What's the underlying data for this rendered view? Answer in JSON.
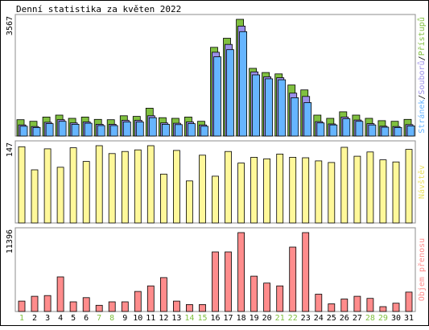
{
  "chart_data": [
    {
      "type": "bar",
      "title": "Denní statistika za květen 2022",
      "ymax_label": "3567",
      "ylim": [
        0,
        3567
      ],
      "legend": [
        "Stránek",
        "/",
        "Souborů",
        "/",
        "Přístupů"
      ],
      "categories": [
        "1",
        "2",
        "3",
        "4",
        "5",
        "6",
        "7",
        "8",
        "9",
        "10",
        "11",
        "12",
        "13",
        "14",
        "15",
        "16",
        "17",
        "18",
        "19",
        "20",
        "21",
        "22",
        "23",
        "24",
        "25",
        "26",
        "27",
        "28",
        "29",
        "30",
        "31"
      ],
      "weekend_days": [
        1,
        7,
        8,
        14,
        15,
        21,
        22,
        28,
        29
      ],
      "series": [
        {
          "name": "Přístupů",
          "values": [
            500,
            450,
            580,
            640,
            540,
            580,
            510,
            500,
            620,
            600,
            850,
            560,
            540,
            580,
            450,
            2710,
            2990,
            3567,
            2070,
            1940,
            1900,
            1560,
            1410,
            640,
            540,
            740,
            640,
            540,
            470,
            450,
            510
          ]
        },
        {
          "name": "Souborů",
          "values": [
            340,
            290,
            420,
            500,
            400,
            430,
            360,
            360,
            480,
            480,
            620,
            400,
            390,
            430,
            340,
            2560,
            2800,
            3360,
            1960,
            1810,
            1780,
            1310,
            1210,
            440,
            370,
            580,
            490,
            380,
            300,
            290,
            350
          ]
        },
        {
          "name": "Stránek",
          "values": [
            300,
            260,
            380,
            450,
            360,
            390,
            320,
            320,
            430,
            430,
            560,
            360,
            350,
            380,
            300,
            2420,
            2640,
            3190,
            1870,
            1750,
            1720,
            1170,
            1020,
            400,
            340,
            530,
            450,
            340,
            270,
            260,
            310
          ]
        }
      ]
    },
    {
      "type": "bar",
      "ymax_label": "147",
      "ylim": [
        0,
        147
      ],
      "legend": "Návštěv",
      "categories": [
        "1",
        "2",
        "3",
        "4",
        "5",
        "6",
        "7",
        "8",
        "9",
        "10",
        "11",
        "12",
        "13",
        "14",
        "15",
        "16",
        "17",
        "18",
        "19",
        "20",
        "21",
        "22",
        "23",
        "24",
        "25",
        "26",
        "27",
        "28",
        "29",
        "30",
        "31"
      ],
      "series": [
        {
          "name": "Návštěv",
          "values": [
            145,
            101,
            141,
            106,
            143,
            117,
            147,
            132,
            136,
            139,
            147,
            93,
            138,
            80,
            129,
            89,
            136,
            114,
            125,
            122,
            131,
            125,
            124,
            118,
            115,
            144,
            127,
            135,
            120,
            116,
            140
          ]
        }
      ]
    },
    {
      "type": "bar",
      "ymax_label": "11396",
      "ylim": [
        0,
        11396
      ],
      "legend": "Objem přenosu",
      "categories": [
        "1",
        "2",
        "3",
        "4",
        "5",
        "6",
        "7",
        "8",
        "9",
        "10",
        "11",
        "12",
        "13",
        "14",
        "15",
        "16",
        "17",
        "18",
        "19",
        "20",
        "21",
        "22",
        "23",
        "24",
        "25",
        "26",
        "27",
        "28",
        "29",
        "30",
        "31"
      ],
      "series": [
        {
          "name": "Objem přenosu",
          "values": [
            1500,
            2200,
            2300,
            5000,
            1400,
            2000,
            900,
            1400,
            1400,
            2900,
            3700,
            4900,
            1500,
            1000,
            1000,
            8600,
            8600,
            11396,
            5100,
            4100,
            3700,
            9300,
            11396,
            2500,
            1100,
            1800,
            2200,
            1900,
            700,
            1200,
            2800
          ]
        }
      ]
    }
  ],
  "colors": {
    "frame": "#000000",
    "panel_border": "#8c8c8c",
    "accesses": "#80c040",
    "files": "#9b8fe8",
    "pages": "#66b5ff",
    "visits": "#fff89a",
    "volume": "#ff8c8c",
    "weekday_label": "#000000",
    "weekend_label": "#80c040",
    "pages_text": "#66b5ff",
    "files_text": "#9b8fe8",
    "accesses_text": "#80c040",
    "visits_text": "#e8e060",
    "volume_text": "#ff8c8c"
  }
}
